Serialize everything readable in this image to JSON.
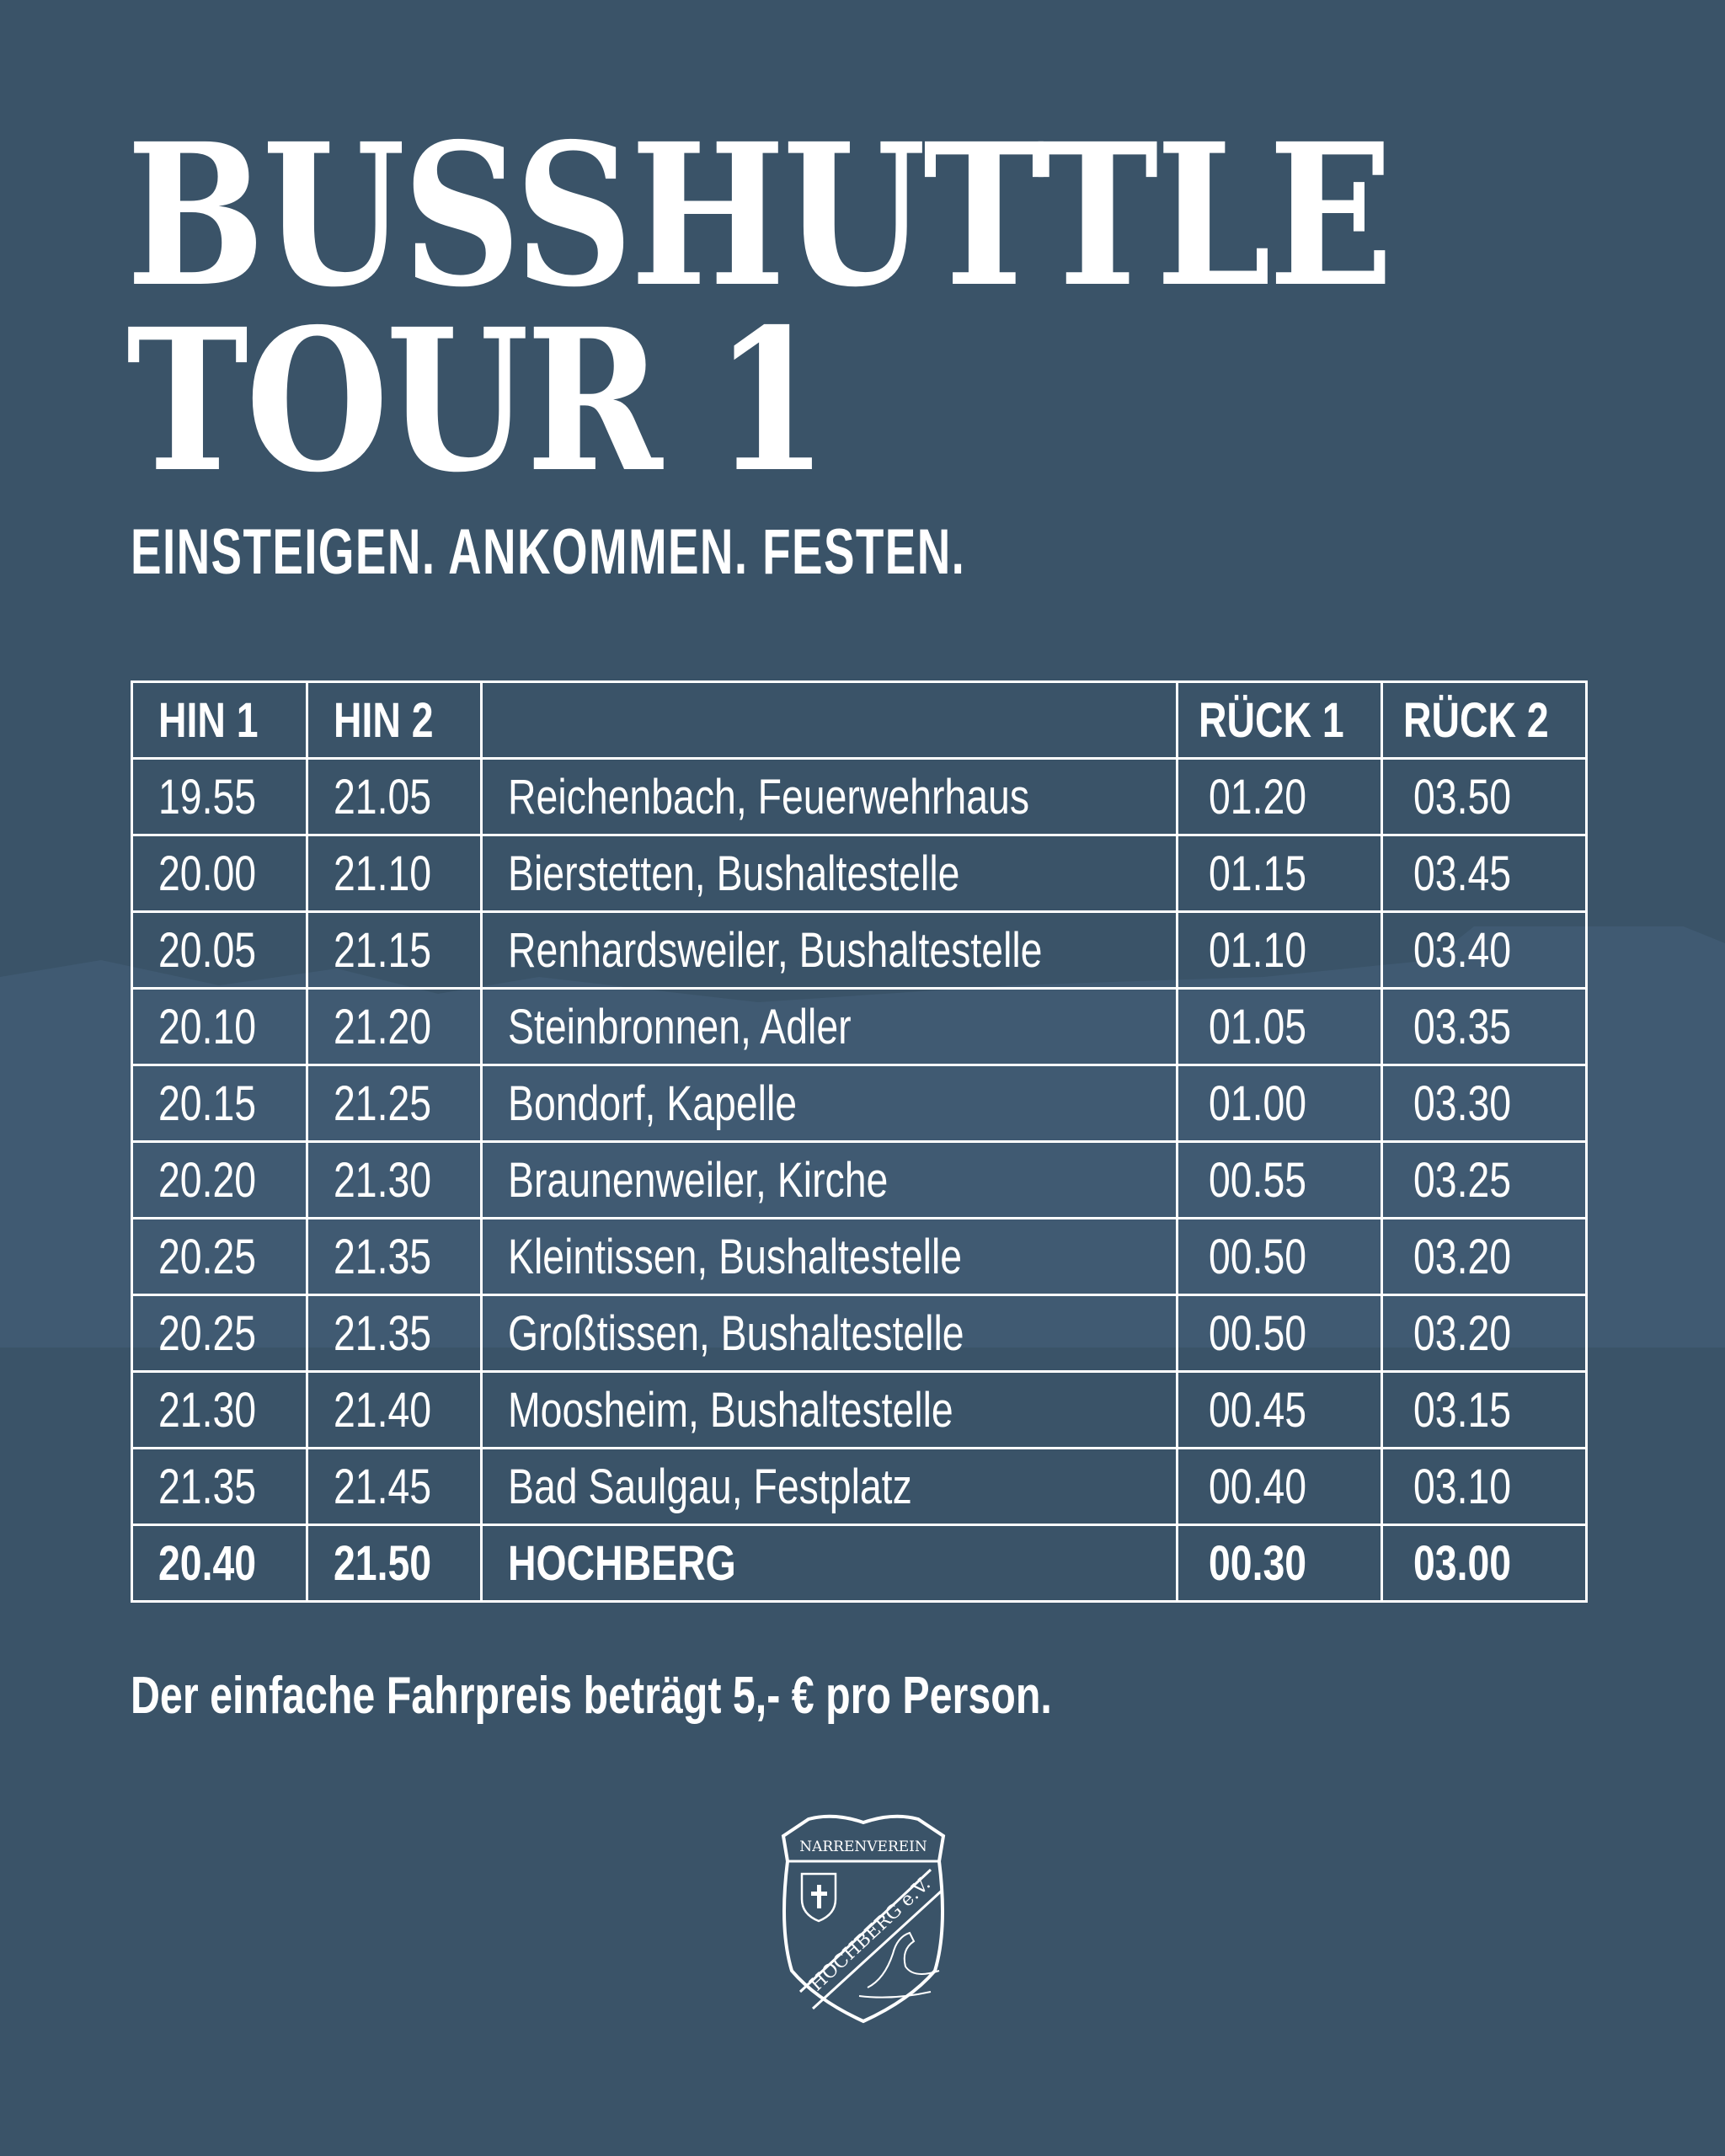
{
  "title_line1": "BUSSHUTTLE",
  "title_line2": "TOUR 1",
  "subtitle": "EINSTEIGEN. ANKOMMEN. FESTEN.",
  "table": {
    "headers": [
      "HIN 1",
      "HIN 2",
      "",
      "RÜCK 1",
      "RÜCK 2"
    ],
    "rows": [
      [
        "19.55",
        "21.05",
        "Reichenbach, Feuerwehrhaus",
        "01.20",
        "03.50"
      ],
      [
        "20.00",
        "21.10",
        "Bierstetten, Bushaltestelle",
        "01.15",
        "03.45"
      ],
      [
        "20.05",
        "21.15",
        "Renhardsweiler, Bushaltestelle",
        "01.10",
        "03.40"
      ],
      [
        "20.10",
        "21.20",
        "Steinbronnen, Adler",
        "01.05",
        "03.35"
      ],
      [
        "20.15",
        "21.25",
        "Bondorf, Kapelle",
        "01.00",
        "03.30"
      ],
      [
        "20.20",
        "21.30",
        "Braunenweiler, Kirche",
        "00.55",
        "03.25"
      ],
      [
        "20.25",
        "21.35",
        "Kleintissen, Bushaltestelle",
        "00.50",
        "03.20"
      ],
      [
        "20.25",
        "21.35",
        "Großtissen, Bushaltestelle",
        "00.50",
        "03.20"
      ],
      [
        "21.30",
        "21.40",
        "Moosheim, Bushaltestelle",
        "00.45",
        "03.15"
      ],
      [
        "21.35",
        "21.45",
        "Bad Saulgau, Festplatz",
        "00.40",
        "03.10"
      ],
      [
        "20.40",
        "21.50",
        "HOCHBERG",
        "00.30",
        "03.00"
      ]
    ]
  },
  "footer_note": "Der einfache Fahrpreis beträgt 5,- € pro Person.",
  "logo": {
    "top_text": "NARRENVEREIN",
    "band_text": "HOCHBERG e.V."
  },
  "colors": {
    "background": "#3a5368",
    "text": "#ffffff"
  }
}
